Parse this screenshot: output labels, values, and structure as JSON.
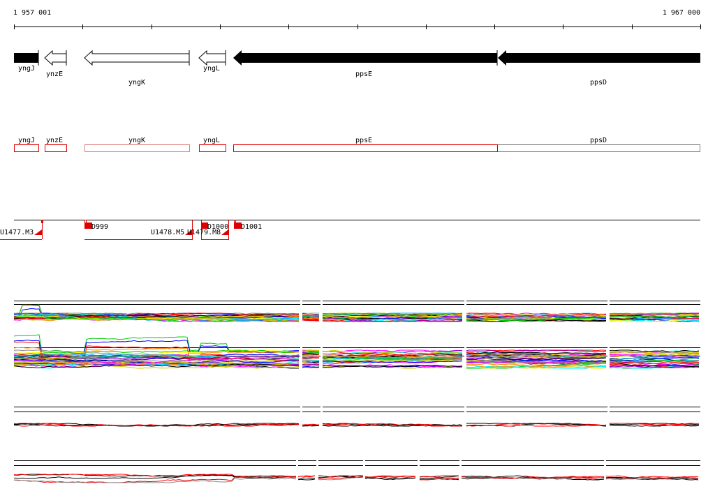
{
  "ruler": {
    "start_label": "1 957 001",
    "end_label": "1 967 000"
  },
  "genes": [
    {
      "name": "yngJ",
      "strand": "+",
      "style": "filled"
    },
    {
      "name": "ynzE",
      "strand": "-",
      "style": "open"
    },
    {
      "name": "yngK",
      "strand": "-",
      "style": "open"
    },
    {
      "name": "yngL",
      "strand": "-",
      "style": "open"
    },
    {
      "name": "ppsE",
      "strand": "-",
      "style": "filled"
    },
    {
      "name": "ppsD",
      "strand": "-",
      "style": "filled"
    }
  ],
  "features": [
    {
      "label": "U1477.M3"
    },
    {
      "label": "D999"
    },
    {
      "label": "U1478.M5"
    },
    {
      "label": "U1479.M8"
    },
    {
      "label": "D1000"
    },
    {
      "label": "D1001"
    }
  ],
  "colors": {
    "accent": "#ff0000",
    "line": "#000000"
  }
}
